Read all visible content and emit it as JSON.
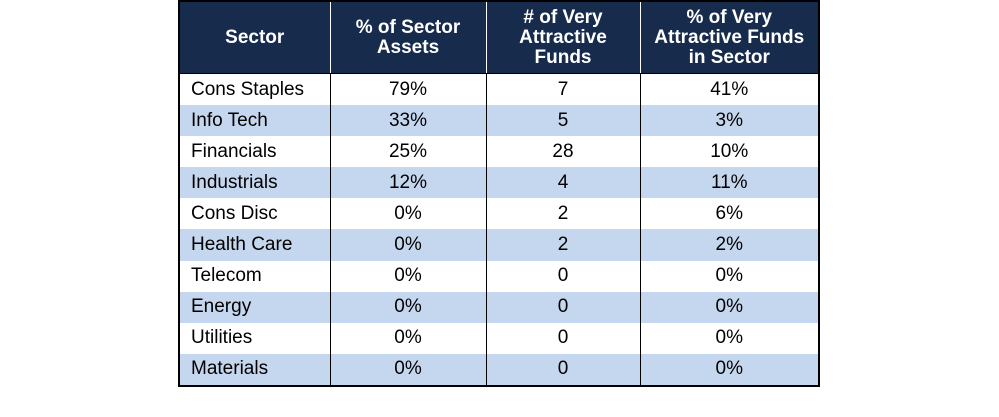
{
  "table": {
    "headers": [
      "Sector",
      "% of Sector Assets",
      "# of Very Attractive Funds",
      "% of Very Attractive Funds in Sector"
    ],
    "rows": [
      [
        "Cons Staples",
        "79%",
        "7",
        "41%"
      ],
      [
        "Info Tech",
        "33%",
        "5",
        "3%"
      ],
      [
        "Financials",
        "25%",
        "28",
        "10%"
      ],
      [
        "Industrials",
        "12%",
        "4",
        "11%"
      ],
      [
        "Cons Disc",
        "0%",
        "2",
        "6%"
      ],
      [
        "Health Care",
        "0%",
        "2",
        "2%"
      ],
      [
        "Telecom",
        "0%",
        "0",
        "0%"
      ],
      [
        "Energy",
        "0%",
        "0",
        "0%"
      ],
      [
        "Utilities",
        "0%",
        "0",
        "0%"
      ],
      [
        "Materials",
        "0%",
        "0",
        "0%"
      ]
    ]
  },
  "colors": {
    "header_background": "#172b4d",
    "header_text": "#ffffff",
    "alternate_row": "#c5d7ee",
    "row": "#ffffff",
    "border": "#000000"
  }
}
